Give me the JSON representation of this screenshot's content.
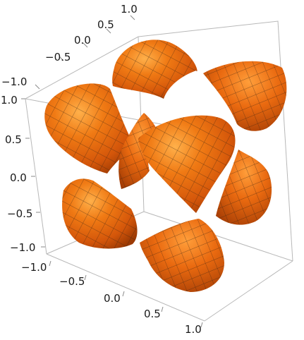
{
  "plot": {
    "axis_top": {
      "ticks": [
        "1.0",
        "0.5",
        "0.0",
        "−0.5",
        "−1.0"
      ]
    },
    "axis_left": {
      "ticks": [
        "1.0",
        "0.5",
        "0.0",
        "−0.5",
        "−1.0"
      ]
    },
    "axis_bottom": {
      "ticks": [
        "−1.0",
        "−0.5",
        "0.0",
        "0.5",
        "1.0"
      ]
    },
    "surface_color": "#e2620c",
    "surface_highlight": "#ff9a2e",
    "surface_shadow": "#a33e05",
    "mesh_color": "#3a2412",
    "box_color": "#b8b8b8",
    "blob_count": 8
  }
}
